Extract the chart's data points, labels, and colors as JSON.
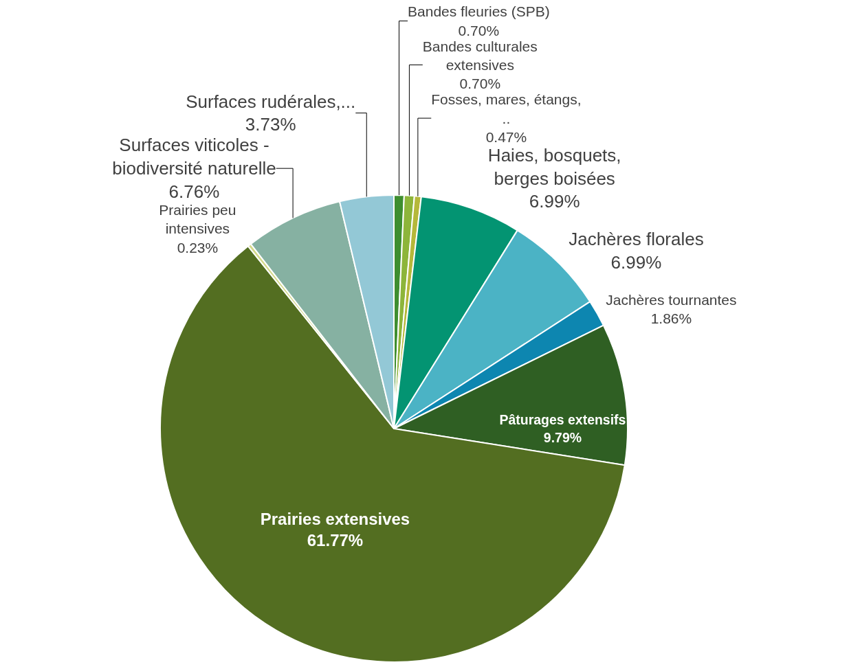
{
  "chart_data": {
    "type": "pie",
    "categories": [
      "Bandes fleuries (SPB)",
      "Bandes culturales extensives",
      "Fosses, mares, étangs, ..",
      "Haies, bosquets, berges boisées",
      "Jachères florales",
      "Jachères tournantes",
      "Pâturages extensifs",
      "Prairies extensives",
      "Prairies peu intensives",
      "Surfaces viticoles - biodiversité naturelle",
      "Surfaces rudérales,..."
    ],
    "values": [
      0.7,
      0.7,
      0.47,
      6.99,
      6.99,
      1.86,
      9.79,
      61.77,
      0.23,
      6.76,
      3.73
    ],
    "value_labels": [
      "0.70%",
      "0.70%",
      "0.47%",
      "6.99%",
      "6.99%",
      "1.86%",
      "9.79%",
      "61.77%",
      "0.23%",
      "6.76%",
      "3.73%"
    ],
    "colors": [
      "#3e8e2f",
      "#8db53a",
      "#b5b83a",
      "#039472",
      "#4bb3c5",
      "#0d86b0",
      "#2f5f23",
      "#536e21",
      "#d4d98a",
      "#86b1a2",
      "#93c8d6"
    ],
    "legend": false
  }
}
